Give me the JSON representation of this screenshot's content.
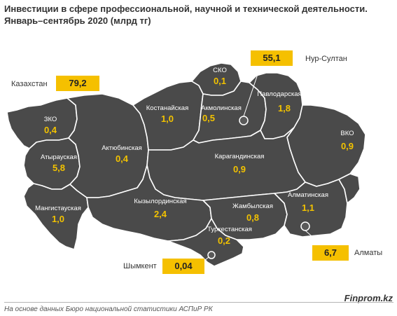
{
  "title": {
    "line1": "Инвестиции в сфере профессиональной, научной и технической деятельности.",
    "line2": "Январь–сентябрь 2020  (млрд тг)"
  },
  "colors": {
    "region_fill": "#4a4a4a",
    "value_text": "#f2c200",
    "callout_box": "#f5c000"
  },
  "country": {
    "label": "Казахстан",
    "value": "79,2"
  },
  "regions": [
    {
      "name": "ЗКО",
      "value": "0,4"
    },
    {
      "name": "Атырауская",
      "value": "5,8"
    },
    {
      "name": "Мангистауская",
      "value": "1,0"
    },
    {
      "name": "Актюбинская",
      "value": "0,4"
    },
    {
      "name": "Костанайская",
      "value": "1,0"
    },
    {
      "name": "СКО",
      "value": "0,1"
    },
    {
      "name": "Акмолинская",
      "value": "0,5"
    },
    {
      "name": "Павлодарская",
      "value": "1,8"
    },
    {
      "name": "ВКО",
      "value": "0,9"
    },
    {
      "name": "Карагандинская",
      "value": "0,9"
    },
    {
      "name": "Кызылординская",
      "value": "2,4"
    },
    {
      "name": "Жамбылская",
      "value": "0,8"
    },
    {
      "name": "Алматинская",
      "value": "1,1"
    },
    {
      "name": "Туркестанская",
      "value": "0,2"
    }
  ],
  "cities": [
    {
      "name": "Нур-Султан",
      "value": "55,1"
    },
    {
      "name": "Алматы",
      "value": "6,7"
    },
    {
      "name": "Шымкент",
      "value": "0,04"
    }
  ],
  "footer": {
    "source": "На основе данных  Бюро национальной  статистики АСПиР РК",
    "brand": "Finprom.kz"
  }
}
